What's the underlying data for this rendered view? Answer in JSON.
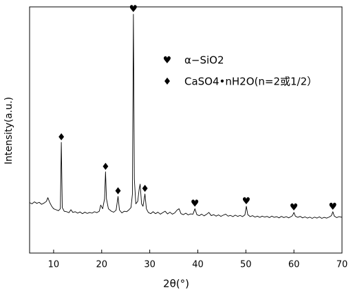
{
  "chart_data": {
    "type": "line",
    "xlabel": "2θ(°)",
    "ylabel": "Intensity(a.u.)",
    "xlim": [
      5,
      70
    ],
    "xticks": [
      10,
      20,
      30,
      40,
      50,
      60,
      70
    ],
    "ylim": [
      0,
      100
    ],
    "x": [
      5,
      5.5,
      6,
      6.5,
      7,
      7.5,
      8,
      8.5,
      8.8,
      9.2,
      9.6,
      10,
      10.5,
      11,
      11.4,
      11.6,
      11.8,
      12.2,
      12.7,
      13.2,
      13.6,
      14,
      14.5,
      15,
      15.5,
      16,
      16.5,
      17,
      17.5,
      18,
      18.5,
      19,
      19.5,
      19.8,
      20.2,
      20.6,
      20.8,
      21,
      21.4,
      22,
      22.5,
      23,
      23.4,
      23.7,
      24.2,
      24.7,
      25.2,
      25.7,
      26.1,
      26.4,
      26.6,
      26.8,
      27.1,
      27.5,
      27.8,
      28,
      28.3,
      28.6,
      29,
      29.3,
      29.7,
      30.2,
      30.7,
      31.2,
      31.7,
      32.2,
      32.7,
      33.2,
      33.7,
      34.2,
      34.7,
      35.2,
      35.7,
      36.1,
      36.5,
      37,
      37.5,
      38,
      38.5,
      39,
      39.4,
      39.8,
      40.3,
      40.8,
      41.3,
      41.8,
      42.3,
      42.8,
      43.3,
      43.8,
      44.3,
      44.8,
      45.3,
      45.8,
      46.3,
      46.8,
      47.3,
      47.8,
      48.3,
      48.8,
      49.3,
      49.8,
      50.1,
      50.4,
      50.9,
      51.4,
      51.9,
      52.4,
      52.9,
      53.4,
      53.9,
      54.4,
      54.9,
      55.4,
      55.9,
      56.4,
      56.9,
      57.4,
      57.9,
      58.4,
      58.9,
      59.4,
      59.7,
      60,
      60.3,
      60.8,
      61.3,
      61.8,
      62.3,
      62.8,
      63.3,
      63.8,
      64.3,
      64.8,
      65.3,
      65.8,
      66.3,
      66.8,
      67.3,
      67.8,
      68.1,
      68.4,
      68.9,
      69.4,
      70
    ],
    "series": [
      {
        "color": "#000000",
        "values": [
          20.5,
          20,
          20.8,
          20.2,
          20.6,
          19.8,
          20.3,
          21,
          22.5,
          20.5,
          19,
          18,
          17.6,
          17.2,
          18,
          45,
          18.5,
          17,
          16.8,
          16.4,
          17.6,
          16.5,
          16.8,
          16.2,
          16.7,
          16,
          16.6,
          16.1,
          16.5,
          16.2,
          16.8,
          16.4,
          17,
          19.5,
          18,
          22,
          33,
          22,
          18,
          17,
          16.6,
          17.4,
          23,
          17.5,
          16.3,
          17,
          16.8,
          17.6,
          18.5,
          24,
          97,
          30,
          20,
          21,
          26,
          28,
          20,
          19,
          24,
          18,
          16.5,
          16,
          16.8,
          16,
          16.6,
          15.8,
          16.4,
          17,
          15.9,
          16.6,
          15.8,
          16.3,
          17.5,
          18,
          16,
          15.6,
          16.2,
          15.5,
          15.9,
          15.8,
          18,
          15.6,
          15.2,
          15.8,
          15.1,
          15.7,
          16.5,
          15.2,
          15.6,
          15,
          15.5,
          14.9,
          15.4,
          15.8,
          15,
          15.3,
          14.8,
          15.4,
          14.9,
          15.3,
          14.8,
          15.5,
          19,
          15.6,
          14.8,
          15.2,
          14.6,
          15,
          14.5,
          15,
          14.6,
          14.9,
          14.4,
          15,
          14.5,
          14.8,
          14.3,
          14.9,
          14.4,
          14.8,
          14.3,
          14.8,
          15.2,
          16.5,
          15,
          14.5,
          14.9,
          14.3,
          14.7,
          14.2,
          14.6,
          14.1,
          14.6,
          14.2,
          14.7,
          14.1,
          14.5,
          14.2,
          14.6,
          15.2,
          16.8,
          15,
          14.4,
          14.8,
          14.5
        ]
      }
    ],
    "markers": [
      {
        "x": 11.6,
        "y": 45,
        "symbol": "♦"
      },
      {
        "x": 20.8,
        "y": 33,
        "symbol": "♦"
      },
      {
        "x": 23.4,
        "y": 23,
        "symbol": "♦"
      },
      {
        "x": 26.6,
        "y": 97,
        "symbol": "♥"
      },
      {
        "x": 29,
        "y": 24,
        "symbol": "♦"
      },
      {
        "x": 39.4,
        "y": 18,
        "symbol": "♥"
      },
      {
        "x": 50.1,
        "y": 19,
        "symbol": "♥"
      },
      {
        "x": 60,
        "y": 16.5,
        "symbol": "♥"
      },
      {
        "x": 68.1,
        "y": 16.8,
        "symbol": "♥"
      }
    ],
    "legend": [
      {
        "symbol": "♥",
        "label": "α−SiO2"
      },
      {
        "symbol": "♦",
        "label": "CaSO4•nH2O(n=2或1/2）"
      }
    ]
  }
}
